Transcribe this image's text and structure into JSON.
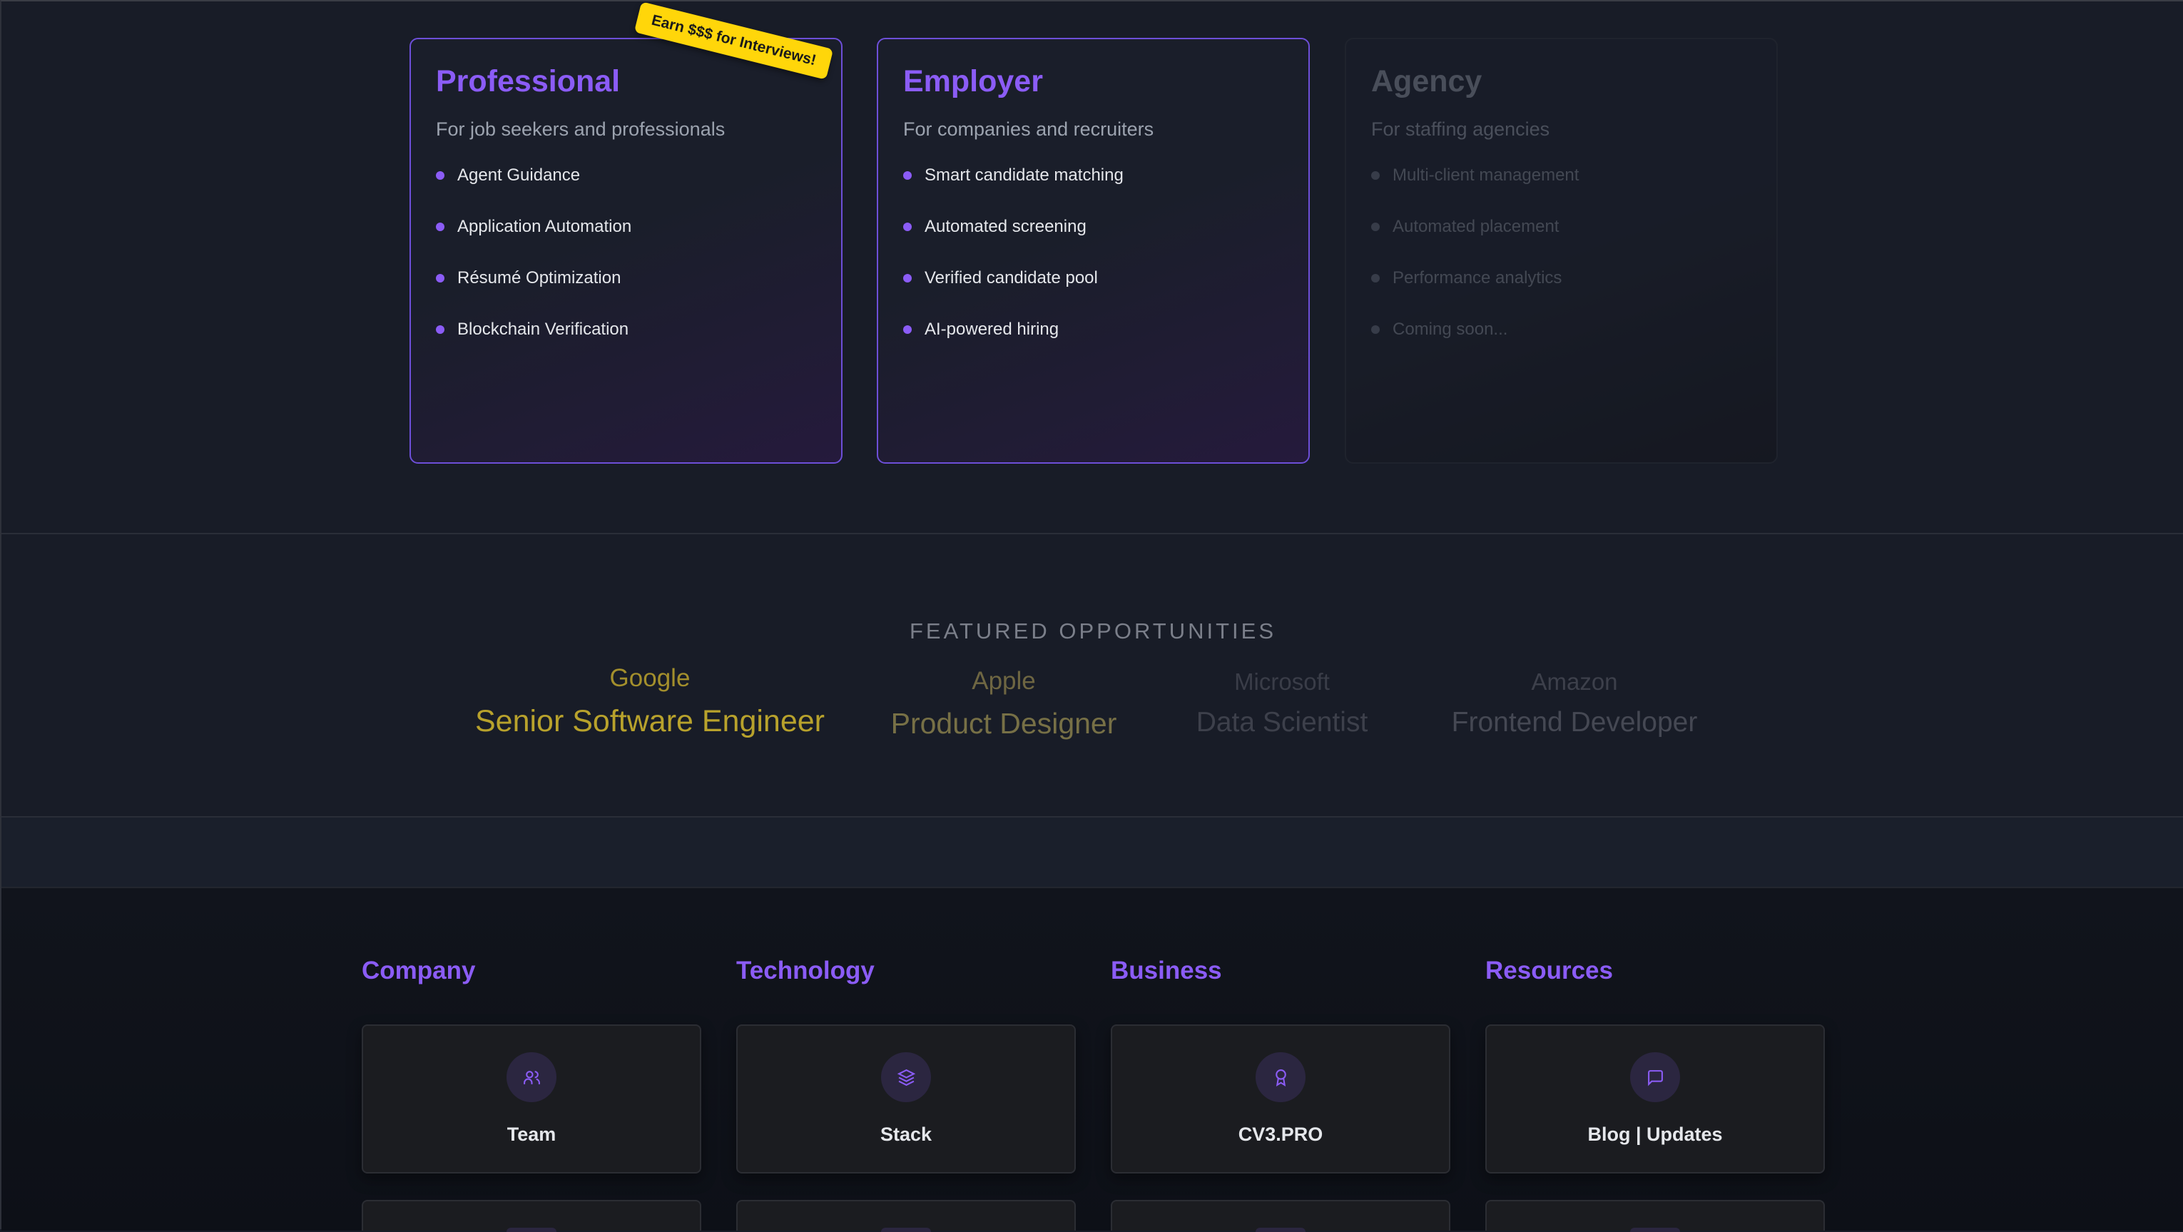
{
  "plans": [
    {
      "title": "Professional",
      "subtitle": "For job seekers and professionals",
      "features": [
        "Agent Guidance",
        "Application Automation",
        "Résumé Optimization",
        "Blockchain Verification"
      ],
      "badge": "Earn $$$ for Interviews!"
    },
    {
      "title": "Employer",
      "subtitle": "For companies and recruiters",
      "features": [
        "Smart candidate matching",
        "Automated screening",
        "Verified candidate pool",
        "AI-powered hiring"
      ]
    },
    {
      "title": "Agency",
      "subtitle": "For staffing agencies",
      "features": [
        "Multi-client management",
        "Automated placement",
        "Performance analytics",
        "Coming soon..."
      ],
      "disabled": true
    }
  ],
  "featured": {
    "heading": "FEATURED OPPORTUNITIES",
    "items": [
      {
        "company": "Google",
        "role": "Senior Software Engineer"
      },
      {
        "company": "Apple",
        "role": "Product Designer"
      },
      {
        "company": "Microsoft",
        "role": "Data Scientist"
      },
      {
        "company": "Amazon",
        "role": "Frontend Developer"
      }
    ]
  },
  "footer": {
    "columns": [
      {
        "heading": "Company",
        "link": "Team",
        "icon": "users-icon"
      },
      {
        "heading": "Technology",
        "link": "Stack",
        "icon": "layers-icon"
      },
      {
        "heading": "Business",
        "link": "CV3.PRO",
        "icon": "award-icon"
      },
      {
        "heading": "Resources",
        "link": "Blog | Updates",
        "icon": "message-square-icon"
      }
    ]
  },
  "colors": {
    "accent": "#8b5cf6",
    "badge": "#ffd60a",
    "featured_active": "#b8a22c"
  }
}
